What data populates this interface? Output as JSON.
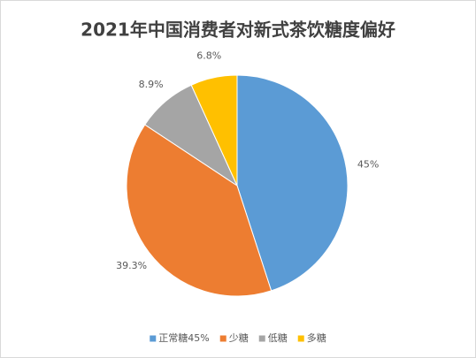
{
  "chart_data": {
    "type": "pie",
    "title": "2021年中国消费者对新式茶饮糖度偏好",
    "categories": [
      "正常糖45%",
      "少糖",
      "低糖",
      "多糖"
    ],
    "values": [
      45,
      39.3,
      8.9,
      6.8
    ],
    "value_labels": [
      "45%",
      "39.3%",
      "8.9%",
      "6.8%"
    ],
    "colors": [
      "#5b9bd5",
      "#ed7d31",
      "#a5a5a5",
      "#ffc000"
    ],
    "legend": "bottom"
  }
}
